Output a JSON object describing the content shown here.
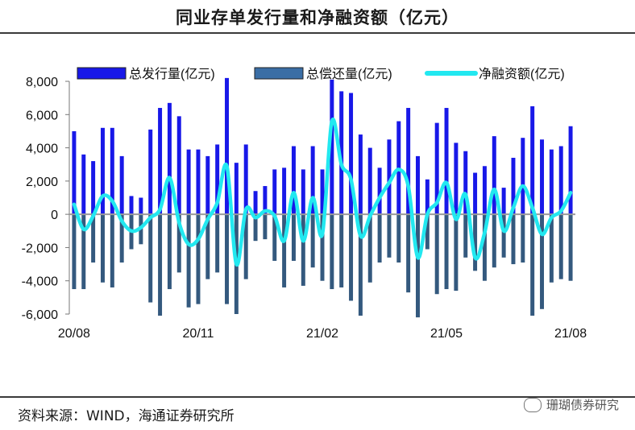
{
  "chart_data": {
    "type": "bar",
    "title": "同业存单发行量和净融资额（亿元）",
    "source": "资料来源：WIND，海通证券研究所",
    "watermark": "珊瑚债券研究",
    "ylim": [
      -6000,
      8000
    ],
    "yticks": [
      -6000,
      -4000,
      -2000,
      0,
      2000,
      4000,
      6000,
      8000
    ],
    "ytick_labels": [
      "-6,000",
      "-4,000",
      "-2,000",
      "0",
      "2,000",
      "4,000",
      "6,000",
      "8,000"
    ],
    "xtick_labels": [
      {
        "label": "20/08",
        "index": 0
      },
      {
        "label": "20/11",
        "index": 13
      },
      {
        "label": "21/02",
        "index": 26
      },
      {
        "label": "21/05",
        "index": 39
      },
      {
        "label": "21/08",
        "index": 52
      }
    ],
    "colors": {
      "issuance": "#1818e8",
      "repayment": "#34597e",
      "net": "#22e8f0",
      "zero": "#9a9a9a"
    },
    "series": [
      {
        "name": "总发行量(亿元)",
        "type": "bar",
        "values": [
          5000,
          3600,
          3200,
          5200,
          5200,
          3500,
          1100,
          1000,
          5100,
          6400,
          6700,
          5900,
          3900,
          3900,
          3500,
          4200,
          8200,
          3100,
          4200,
          1400,
          1700,
          2700,
          2800,
          4100,
          2700,
          4100,
          2700,
          8100,
          7400,
          7300,
          4800,
          4000,
          2800,
          4500,
          5600,
          6400,
          3500,
          2100,
          5500,
          6400,
          4300,
          3800,
          2500,
          2900,
          4700,
          1600,
          3400,
          4600,
          6500,
          4500,
          3900,
          4100,
          5300
        ]
      },
      {
        "name": "总偿还量(亿元)",
        "type": "bar",
        "values": [
          -4500,
          -4500,
          -2900,
          -4100,
          -4400,
          -2900,
          -2100,
          -1800,
          -5300,
          -6100,
          -4500,
          -3500,
          -5600,
          -5400,
          -3900,
          -3500,
          -5400,
          -6000,
          -3900,
          -1600,
          -1500,
          -2800,
          -4400,
          -2800,
          -4300,
          -3200,
          -4000,
          -4500,
          -4400,
          -5200,
          -6100,
          -4100,
          -2900,
          -2600,
          -2900,
          -4700,
          -6200,
          -2100,
          -4800,
          -4500,
          -4600,
          -2600,
          -3400,
          -4000,
          -3200,
          -2600,
          -3000,
          -2900,
          -6100,
          -5700,
          -4100,
          -3900,
          -4000
        ]
      },
      {
        "name": "净融资额(亿元)",
        "type": "line",
        "values": [
          600,
          -900,
          -100,
          1100,
          800,
          -400,
          -1000,
          -800,
          -200,
          300,
          2200,
          -500,
          -1800,
          -1500,
          -300,
          700,
          2900,
          -3000,
          300,
          -200,
          200,
          -100,
          -1600,
          1300,
          -1600,
          1000,
          -1200,
          5600,
          3000,
          2100,
          -1300,
          -100,
          1000,
          1900,
          2700,
          1700,
          -2600,
          0,
          700,
          1900,
          -300,
          1200,
          -2600,
          -1100,
          1500,
          -1000,
          400,
          1700,
          400,
          -1200,
          -200,
          200,
          1300
        ]
      }
    ]
  }
}
